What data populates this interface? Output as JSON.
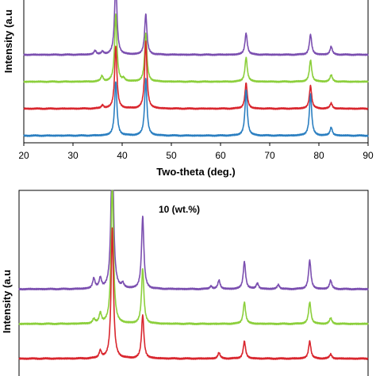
{
  "chart_data": [
    {
      "type": "line",
      "title": "",
      "xlabel": "Two-theta (deg.)",
      "ylabel": "Intensity (a.u",
      "xlim": [
        20,
        90
      ],
      "x_ticks": [
        "20",
        "30",
        "40",
        "50",
        "60",
        "70",
        "80",
        "90"
      ],
      "grid": false,
      "series": [
        {
          "color": "#7b4fb0",
          "baseline": 3.0,
          "peaks": [
            [
              34.5,
              0.15
            ],
            [
              36.0,
              0.1
            ],
            [
              38.7,
              2.8
            ],
            [
              44.8,
              1.5
            ],
            [
              65.2,
              0.8
            ],
            [
              78.3,
              0.75
            ],
            [
              82.5,
              0.3
            ]
          ]
        },
        {
          "color": "#8ccf3c",
          "baseline": 2.0,
          "peaks": [
            [
              35.9,
              0.2
            ],
            [
              38.7,
              2.5
            ],
            [
              40.3,
              0.1
            ],
            [
              44.8,
              1.8
            ],
            [
              65.2,
              0.9
            ],
            [
              78.3,
              0.8
            ],
            [
              82.5,
              0.25
            ]
          ]
        },
        {
          "color": "#d9262e",
          "baseline": 1.0,
          "peaks": [
            [
              36.0,
              0.12
            ],
            [
              38.7,
              2.3
            ],
            [
              44.8,
              2.5
            ],
            [
              65.2,
              0.95
            ],
            [
              78.3,
              0.85
            ],
            [
              82.5,
              0.2
            ]
          ]
        },
        {
          "color": "#2b7fc1",
          "baseline": 0.0,
          "peaks": [
            [
              38.7,
              2.0
            ],
            [
              44.8,
              2.1
            ],
            [
              65.2,
              1.7
            ],
            [
              78.3,
              1.55
            ],
            [
              82.5,
              0.3
            ]
          ]
        }
      ]
    },
    {
      "type": "line",
      "title": "10 (wt.%)",
      "xlabel": "",
      "ylabel": "Intensity (a.u",
      "xlim": [
        20,
        90
      ],
      "x_ticks": [],
      "grid": false,
      "series": [
        {
          "color": "#7b4fb0",
          "baseline": 3.0,
          "peaks": [
            [
              35.0,
              0.35
            ],
            [
              36.3,
              0.35
            ],
            [
              38.7,
              5.6
            ],
            [
              40.8,
              0.15
            ],
            [
              44.8,
              2.5
            ],
            [
              58.5,
              0.1
            ],
            [
              60.1,
              0.3
            ],
            [
              65.2,
              0.95
            ],
            [
              67.8,
              0.2
            ],
            [
              72.0,
              0.15
            ],
            [
              78.3,
              1.0
            ],
            [
              82.5,
              0.3
            ]
          ]
        },
        {
          "color": "#8ccf3c",
          "baseline": 1.8,
          "peaks": [
            [
              35.0,
              0.15
            ],
            [
              36.3,
              0.35
            ],
            [
              38.7,
              5.0
            ],
            [
              44.8,
              1.9
            ],
            [
              65.2,
              0.75
            ],
            [
              78.3,
              0.75
            ],
            [
              82.5,
              0.2
            ]
          ]
        },
        {
          "color": "#d9262e",
          "baseline": 0.6,
          "peaks": [
            [
              36.3,
              0.25
            ],
            [
              38.7,
              4.5
            ],
            [
              44.8,
              1.5
            ],
            [
              60.1,
              0.2
            ],
            [
              65.2,
              0.6
            ],
            [
              78.3,
              0.6
            ],
            [
              82.5,
              0.15
            ]
          ]
        }
      ]
    }
  ]
}
